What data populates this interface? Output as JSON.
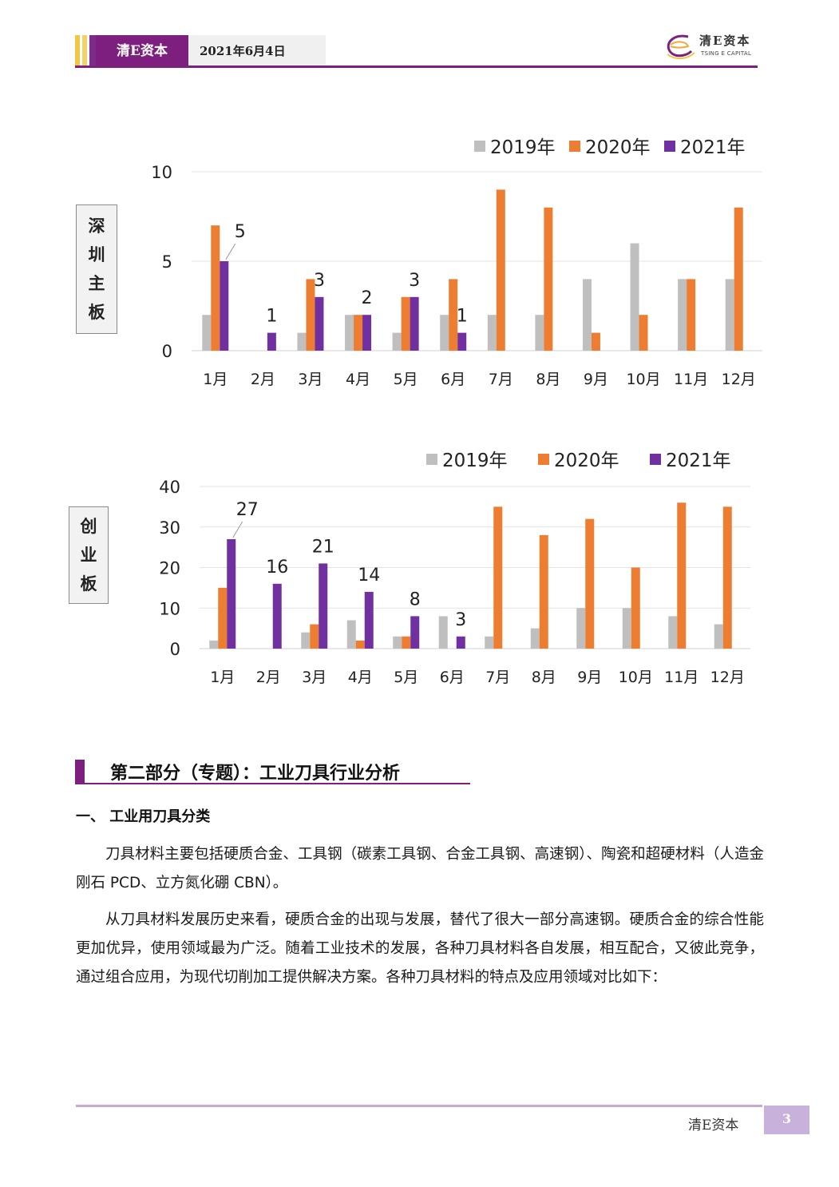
{
  "header": {
    "brand": "清E资本",
    "date": "2021年6月4日",
    "logo_cn": "清E资本",
    "logo_en": "TSING E CAPITAL"
  },
  "chart_data": [
    {
      "type": "bar",
      "side_label": [
        "深",
        "圳",
        "主",
        "板"
      ],
      "categories": [
        "1月",
        "2月",
        "3月",
        "4月",
        "5月",
        "6月",
        "7月",
        "8月",
        "9月",
        "10月",
        "11月",
        "12月"
      ],
      "series": [
        {
          "name": "2019年",
          "color": "#bfbfbf",
          "values": [
            2,
            0,
            1,
            2,
            1,
            2,
            2,
            2,
            4,
            6,
            4,
            4
          ]
        },
        {
          "name": "2020年",
          "color": "#ed7d31",
          "values": [
            7,
            0,
            4,
            2,
            3,
            4,
            9,
            8,
            1,
            2,
            4,
            8
          ]
        },
        {
          "name": "2021年",
          "color": "#7030a0",
          "values": [
            5,
            1,
            3,
            2,
            3,
            1,
            null,
            null,
            null,
            null,
            null,
            null
          ]
        }
      ],
      "data_labels": {
        "series": "2021年",
        "values": [
          "5",
          "1",
          "3",
          "2",
          "3",
          "1"
        ]
      },
      "ylim": [
        0,
        10
      ],
      "yticks": [
        "0",
        "5",
        "10"
      ],
      "legend": "top-right",
      "grid": true
    },
    {
      "type": "bar",
      "side_label": [
        "创",
        "业",
        "板"
      ],
      "categories": [
        "1月",
        "2月",
        "3月",
        "4月",
        "5月",
        "6月",
        "7月",
        "8月",
        "9月",
        "10月",
        "11月",
        "12月"
      ],
      "series": [
        {
          "name": "2019年",
          "color": "#bfbfbf",
          "values": [
            2,
            0,
            4,
            7,
            3,
            8,
            3,
            5,
            10,
            10,
            8,
            6
          ]
        },
        {
          "name": "2020年",
          "color": "#ed7d31",
          "values": [
            15,
            0,
            6,
            2,
            3,
            0,
            35,
            28,
            32,
            20,
            36,
            35
          ]
        },
        {
          "name": "2021年",
          "color": "#7030a0",
          "values": [
            27,
            16,
            21,
            14,
            8,
            3,
            null,
            null,
            null,
            null,
            null,
            null
          ]
        }
      ],
      "data_labels": {
        "series": "2021年",
        "values": [
          "27",
          "16",
          "21",
          "14",
          "8",
          "3"
        ]
      },
      "ylim": [
        0,
        40
      ],
      "yticks": [
        "0",
        "10",
        "20",
        "30",
        "40"
      ],
      "legend": "top-right",
      "grid": true
    }
  ],
  "section": {
    "title": "第二部分（专题）：工业刀具行业分析",
    "subtitle": "一、 工业用刀具分类",
    "paragraphs": [
      "刀具材料主要包括硬质合金、工具钢（碳素工具钢、合金工具钢、高速钢）、陶瓷和超硬材料（人造金刚石 PCD、立方氮化硼 CBN）。",
      "从刀具材料发展历史来看，硬质合金的出现与发展，替代了很大一部分高速钢。硬质合金的综合性能更加优异，使用领域最为广泛。随着工业技术的发展，各种刀具材料各自发展，相互配合，又彼此竞争，通过组合应用，为现代切削加工提供解决方案。各种刀具材料的特点及应用领域对比如下："
    ]
  },
  "footer": {
    "brand": "清E资本",
    "page": "3"
  }
}
